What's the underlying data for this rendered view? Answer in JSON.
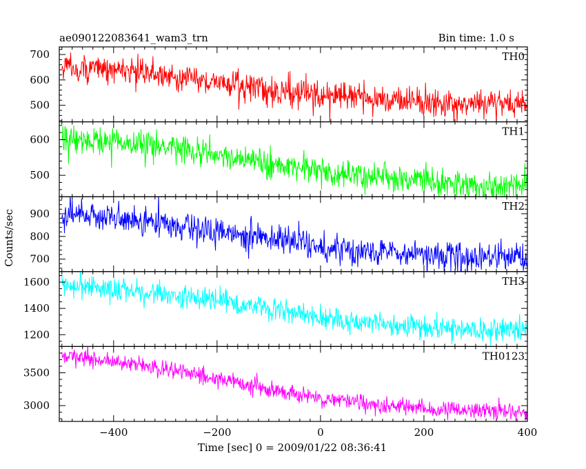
{
  "header": {
    "left_title": "ae090122083641_wam3_trn",
    "right_title": "Bin time: 1.0 s"
  },
  "chart_data": {
    "type": "line",
    "title": "ae090122083641_wam3_trn",
    "subtitle": "Bin time: 1.0 s",
    "xlabel": "Time [sec] 0 = 2009/01/22 08:36:41",
    "ylabel": "Counts/sec",
    "xlim": [
      -505,
      400
    ],
    "x_ticks": [
      -400,
      -200,
      0,
      200,
      400
    ],
    "x_tick_labels": [
      "−400",
      "−200",
      "0",
      "200",
      "400"
    ],
    "grid": false,
    "panels": [
      {
        "name": "TH0",
        "color": "#ff0000",
        "ylim": [
          435,
          730
        ],
        "y_ticks": [
          500,
          600,
          700
        ],
        "y_tick_labels": [
          "500",
          "600",
          "700"
        ],
        "series": [
          {
            "name": "TH0",
            "trend": [
              [
                -500,
                650
              ],
              [
                -400,
                640
              ],
              [
                -300,
                620
              ],
              [
                -200,
                590
              ],
              [
                -100,
                560
              ],
              [
                0,
                540
              ],
              [
                100,
                525
              ],
              [
                200,
                515
              ],
              [
                300,
                508
              ],
              [
                400,
                505
              ]
            ],
            "noise_sd": 28
          }
        ]
      },
      {
        "name": "TH1",
        "color": "#00ff00",
        "ylim": [
          440,
          650
        ],
        "y_ticks": [
          500,
          600
        ],
        "y_tick_labels": [
          "500",
          "600"
        ],
        "series": [
          {
            "name": "TH1",
            "trend": [
              [
                -500,
                605
              ],
              [
                -400,
                595
              ],
              [
                -300,
                580
              ],
              [
                -200,
                560
              ],
              [
                -100,
                535
              ],
              [
                0,
                510
              ],
              [
                100,
                495
              ],
              [
                200,
                485
              ],
              [
                300,
                475
              ],
              [
                400,
                470
              ]
            ],
            "noise_sd": 20
          }
        ]
      },
      {
        "name": "TH2",
        "color": "#0000ff",
        "ylim": [
          645,
          975
        ],
        "y_ticks": [
          700,
          800,
          900
        ],
        "y_tick_labels": [
          "700",
          "800",
          "900"
        ],
        "series": [
          {
            "name": "TH2",
            "trend": [
              [
                -500,
                895
              ],
              [
                -400,
                880
              ],
              [
                -300,
                855
              ],
              [
                -200,
                825
              ],
              [
                -100,
                785
              ],
              [
                0,
                755
              ],
              [
                100,
                735
              ],
              [
                200,
                720
              ],
              [
                300,
                705
              ],
              [
                400,
                700
              ]
            ],
            "noise_sd": 32
          }
        ]
      },
      {
        "name": "TH3",
        "color": "#00ffff",
        "ylim": [
          1110,
          1680
        ],
        "y_ticks": [
          1200,
          1400,
          1600
        ],
        "y_tick_labels": [
          "1200",
          "1400",
          "1600"
        ],
        "series": [
          {
            "name": "TH3",
            "trend": [
              [
                -500,
                1580
              ],
              [
                -400,
                1555
              ],
              [
                -300,
                1510
              ],
              [
                -200,
                1460
              ],
              [
                -100,
                1400
              ],
              [
                0,
                1330
              ],
              [
                100,
                1285
              ],
              [
                200,
                1255
              ],
              [
                300,
                1235
              ],
              [
                400,
                1225
              ]
            ],
            "noise_sd": 45
          }
        ]
      },
      {
        "name": "TH0123",
        "color": "#ff00ff",
        "ylim": [
          2760,
          3900
        ],
        "y_ticks": [
          3000,
          3500
        ],
        "y_tick_labels": [
          "3000",
          "3500"
        ],
        "series": [
          {
            "name": "TH0123",
            "trend": [
              [
                -500,
                3750
              ],
              [
                -400,
                3680
              ],
              [
                -300,
                3560
              ],
              [
                -200,
                3420
              ],
              [
                -100,
                3260
              ],
              [
                0,
                3100
              ],
              [
                100,
                3020
              ],
              [
                200,
                2960
              ],
              [
                300,
                2920
              ],
              [
                400,
                2900
              ]
            ],
            "noise_sd": 65
          }
        ]
      }
    ]
  }
}
